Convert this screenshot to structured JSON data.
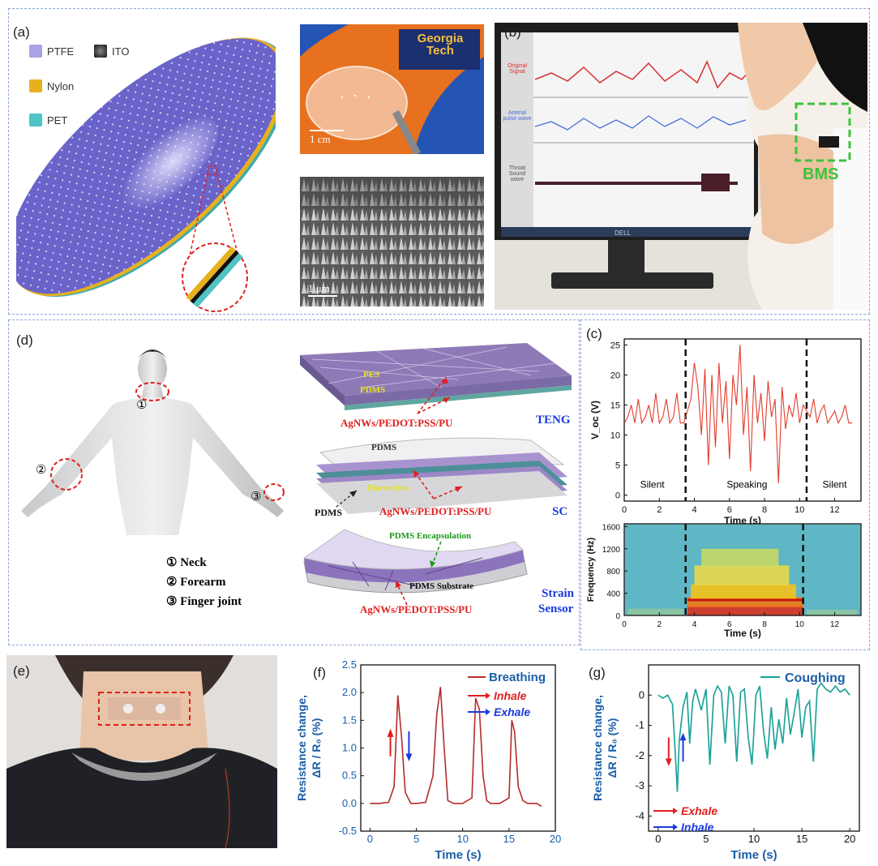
{
  "panels": {
    "a": {
      "label": "(a)",
      "legend": [
        {
          "name": "PTFE",
          "color": "#a7a3e6"
        },
        {
          "name": "ITO",
          "color": "#2b2b2b"
        },
        {
          "name": "Nylon",
          "color": "#e7b11e"
        },
        {
          "name": "PET",
          "color": "#4fc3c6"
        }
      ],
      "photo_sign_text": "Georgia Tech",
      "scale_top": "1 cm",
      "scale_bottom": "1 μm"
    },
    "b": {
      "label": "(b)",
      "monitor_rows": [
        "Original Signal",
        "Arterial pulse wave",
        "Throat Sound wave"
      ],
      "monitor_brand": "DELL",
      "bms_label": "BMS"
    },
    "c": {
      "label": "(c)",
      "annotations": [
        "Silent",
        "Speaking",
        "Silent"
      ]
    },
    "d": {
      "label": "(d)",
      "body_points": [
        "① Neck",
        "② Forearm",
        "③ Finger joint"
      ],
      "markers": [
        "①",
        "②",
        "③"
      ],
      "teng": {
        "layers": [
          "PES",
          "PDMS"
        ],
        "electrode": "AgNWs/PEDOT:PSS/PU",
        "title": "TENG"
      },
      "sc": {
        "layers": [
          "PDMS",
          "Electrolyte",
          "PDMS"
        ],
        "electrode": "AgNWs/PEDOT:PSS/PU",
        "title": "SC"
      },
      "strain": {
        "layers": [
          "PDMS Encapsulation",
          "PDMS Substrate"
        ],
        "electrode": "AgNWs/PEDOT:PSS/PU",
        "title_line1": "Strain",
        "title_line2": "Sensor"
      }
    },
    "e": {
      "label": "(e)"
    },
    "f": {
      "label": "(f)"
    },
    "g": {
      "label": "(g)"
    }
  },
  "chart_data": [
    {
      "id": "c-top",
      "type": "line",
      "xlabel": "Time (s)",
      "ylabel": "V_oc (V)",
      "xlim": [
        0,
        13.5
      ],
      "ylim": [
        -1,
        26
      ],
      "xticks": [
        0,
        2,
        4,
        6,
        8,
        10,
        12
      ],
      "yticks": [
        0,
        5,
        10,
        15,
        20,
        25
      ],
      "color": "#e23b2c",
      "vlines": [
        3.5,
        10.4
      ],
      "series": [
        {
          "x": [
            0,
            0.2,
            0.4,
            0.6,
            0.8,
            1,
            1.2,
            1.4,
            1.6,
            1.8,
            2,
            2.2,
            2.4,
            2.6,
            2.8,
            3,
            3.2,
            3.4,
            3.6,
            3.8,
            4,
            4.2,
            4.4,
            4.6,
            4.8,
            5,
            5.2,
            5.4,
            5.6,
            5.8,
            6,
            6.2,
            6.4,
            6.6,
            6.8,
            7,
            7.2,
            7.4,
            7.6,
            7.8,
            8,
            8.2,
            8.4,
            8.6,
            8.8,
            9,
            9.2,
            9.4,
            9.6,
            9.8,
            10,
            10.2,
            10.4,
            10.6,
            10.8,
            11,
            11.2,
            11.4,
            11.6,
            11.8,
            12,
            12.2,
            12.4,
            12.6,
            12.8,
            13
          ],
          "y": [
            12,
            13,
            15,
            12,
            16,
            12,
            13,
            15,
            12,
            17,
            12,
            13,
            16,
            12,
            13,
            17,
            12,
            12,
            14,
            16,
            22,
            18,
            10,
            21,
            5,
            20,
            8,
            22,
            12,
            19,
            6,
            20,
            15,
            25,
            10,
            18,
            4,
            20,
            12,
            17,
            9,
            19,
            13,
            16,
            2,
            18,
            11,
            15,
            13,
            17,
            12,
            15,
            14,
            13,
            16,
            12,
            14,
            15,
            12,
            13,
            14,
            12,
            13,
            15,
            12,
            12
          ]
        }
      ]
    },
    {
      "id": "c-bottom",
      "type": "heatmap",
      "xlabel": "Time (s)",
      "ylabel": "Frequency (Hz)",
      "xlim": [
        0,
        13.5
      ],
      "ylim": [
        0,
        1650
      ],
      "xticks": [
        0,
        2,
        4,
        6,
        8,
        10,
        12
      ],
      "yticks": [
        0,
        400,
        800,
        1200,
        1600
      ],
      "vlines": [
        3.5,
        10.2
      ]
    },
    {
      "id": "f",
      "type": "line",
      "xlabel": "Time (s)",
      "ylabel": "Resistance change, ΔR / R₀ (%)",
      "xlim": [
        -1,
        20
      ],
      "ylim": [
        -0.5,
        2.5
      ],
      "xticks": [
        0,
        5,
        10,
        15,
        20
      ],
      "yticks": [
        -0.5,
        0.0,
        0.5,
        1.0,
        1.5,
        2.0,
        2.5
      ],
      "color": "#b52b2b",
      "legend": [
        {
          "name": "Breathing",
          "color": "#b52b2b"
        }
      ],
      "arrows": [
        {
          "label": "Inhale",
          "color": "#e02020"
        },
        {
          "label": "Exhale",
          "color": "#1a3ae0"
        }
      ],
      "series": [
        {
          "name": "Breathing",
          "x": [
            0,
            1,
            2,
            2.6,
            3.0,
            3.4,
            3.8,
            4.4,
            5,
            6,
            6.8,
            7.2,
            7.6,
            8.0,
            8.4,
            9,
            10,
            11,
            11.4,
            11.8,
            12.2,
            12.6,
            13,
            14,
            15,
            15.3,
            15.6,
            16,
            16.5,
            17,
            18,
            18.5
          ],
          "y": [
            0,
            0,
            0.02,
            0.3,
            1.95,
            1.2,
            0.2,
            0.0,
            0.0,
            0.02,
            0.5,
            1.6,
            2.1,
            1.0,
            0.05,
            0.0,
            0.0,
            0.1,
            1.9,
            1.7,
            0.5,
            0.05,
            0.0,
            0.0,
            0.1,
            1.5,
            1.3,
            0.3,
            0.05,
            0.0,
            0.0,
            -0.05
          ]
        }
      ]
    },
    {
      "id": "g",
      "type": "line",
      "xlabel": "Time (s)",
      "ylabel": "Resistance change, ΔR / R₀ (%)",
      "xlim": [
        -1,
        21
      ],
      "ylim": [
        -4.5,
        1
      ],
      "xticks": [
        0,
        5,
        10,
        15,
        20
      ],
      "yticks": [
        -4,
        -3,
        -2,
        -1,
        0
      ],
      "color": "#1fa39a",
      "legend": [
        {
          "name": "Coughing",
          "color": "#1fa39a"
        }
      ],
      "arrows": [
        {
          "label": "Exhale",
          "color": "#e02020"
        },
        {
          "label": "Inhale",
          "color": "#1a3ae0"
        }
      ],
      "series": [
        {
          "name": "Coughing",
          "x": [
            0,
            0.5,
            1,
            1.5,
            1.8,
            2.0,
            2.2,
            2.6,
            3,
            3.3,
            3.6,
            3.9,
            4.5,
            5,
            5.4,
            5.8,
            6.2,
            6.6,
            7,
            7.4,
            7.8,
            8.2,
            8.6,
            9,
            9.4,
            9.8,
            10.2,
            10.6,
            11,
            11.4,
            11.8,
            12.2,
            12.6,
            13,
            13.4,
            13.8,
            14.2,
            14.6,
            15,
            15.4,
            15.8,
            16.2,
            16.6,
            17,
            17.5,
            18,
            18.5,
            19,
            19.5,
            20
          ],
          "y": [
            0,
            -0.1,
            0,
            -0.3,
            -2.0,
            -3.2,
            -1.5,
            -0.4,
            0.1,
            -1.6,
            -0.2,
            0.2,
            -0.5,
            0.2,
            -2.3,
            0.0,
            0.3,
            0.1,
            -1.6,
            0.3,
            0.0,
            -2.2,
            0.1,
            0.2,
            -1.4,
            -2.3,
            0.0,
            0.3,
            -1.2,
            -2.1,
            -0.4,
            -1.8,
            -0.8,
            -1.6,
            -0.1,
            -1.3,
            -0.6,
            0.2,
            -1.4,
            -0.4,
            -0.2,
            -2.2,
            0.2,
            0.4,
            0.2,
            0.1,
            0.3,
            0.1,
            0.2,
            0.0
          ]
        }
      ]
    }
  ]
}
